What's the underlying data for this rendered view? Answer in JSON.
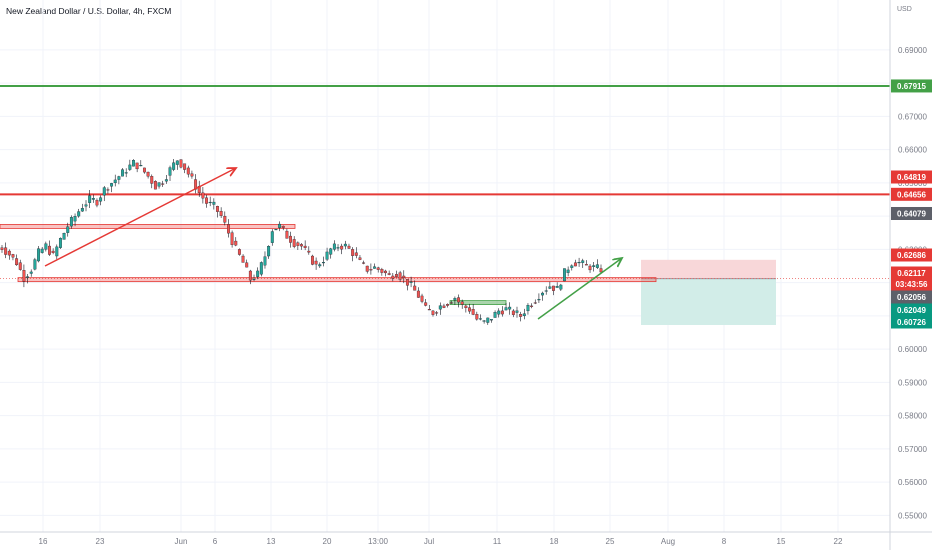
{
  "header": {
    "title": "New Zealand Dollar / U.S. Dollar, 4h, FXCM",
    "currency": "USD"
  },
  "colors": {
    "up": "#26a69a",
    "down": "#ef5350",
    "wick": "#131722",
    "grid": "#f0f3fa",
    "axis_text": "#787b86",
    "green_line": "#43a047",
    "red_line": "#e53935",
    "grey_badge": "#5d6069",
    "teal_badge": "#089981",
    "long_stop_zone": "#f8d7d9",
    "long_target_zone": "#d2ede8"
  },
  "chart_data": {
    "type": "candlestick",
    "symbol": "NZDUSD",
    "timeframe": "4h",
    "broker": "FXCM",
    "y_range": [
      0.545,
      0.705
    ],
    "y_ticks": [
      0.69,
      0.68,
      0.67,
      0.66,
      0.65,
      0.64,
      0.63,
      0.62,
      0.61,
      0.6,
      0.59,
      0.58,
      0.57,
      0.56,
      0.55
    ],
    "y_tick_labels": [
      "0.69000",
      "0.68000",
      "0.67000",
      "0.66000",
      "0.65000",
      "0.64000",
      "0.63000",
      "0.62000",
      "0.61000",
      "0.60000",
      "0.59000",
      "0.58000",
      "0.57000",
      "0.56000",
      "0.55000"
    ],
    "x_tick_labels": [
      "16",
      "23",
      "Jun",
      "6",
      "13",
      "20",
      "13:00",
      "Jul",
      "11",
      "18",
      "25",
      "Aug",
      "8",
      "15",
      "22"
    ],
    "price_path": [
      [
        0.6305,
        0.6285,
        0.626,
        0.6215,
        0.624,
        0.629,
        0.631,
        0.628,
        0.633,
        0.637,
        0.64,
        0.643,
        0.645,
        0.6445,
        0.648,
        0.65,
        0.652,
        0.654,
        0.656,
        0.6545,
        0.652,
        0.649,
        0.6505,
        0.654,
        0.657,
        0.6545,
        0.651,
        0.647,
        0.644,
        0.643,
        0.64,
        0.635,
        0.63,
        0.626,
        0.621,
        0.6225,
        0.628,
        0.636,
        0.637,
        0.634,
        0.632,
        0.631,
        0.628,
        0.625,
        0.627,
        0.63,
        0.631,
        0.631,
        0.629,
        0.626,
        0.624,
        0.6245,
        0.6235,
        0.622,
        0.623,
        0.621,
        0.619,
        0.616,
        0.612,
        0.611,
        0.613,
        0.614,
        0.6155,
        0.613,
        0.612,
        0.609,
        0.608,
        0.6095,
        0.6115,
        0.612,
        0.611,
        0.61,
        0.613,
        0.615,
        0.6175,
        0.619,
        0.618,
        0.623,
        0.626,
        0.626,
        0.625,
        0.6245,
        0.624
      ]
    ],
    "horizontal_levels": [
      {
        "price": 0.67915,
        "label": "0.67915",
        "color": "green"
      },
      {
        "price": 0.64656,
        "label": "0.64656",
        "color": "red"
      }
    ],
    "zones": [
      {
        "from": 0.637,
        "to": 0.6375
      },
      {
        "from": 0.6211,
        "to": 0.6215
      },
      {
        "from": 0.614,
        "to": 0.6146
      }
    ],
    "price_badges": [
      {
        "label": "0.67915",
        "price": 0.67915,
        "color": "green"
      },
      {
        "label": "0.64819",
        "price": 0.64819,
        "color": "red"
      },
      {
        "label": "0.64656",
        "price": 0.64656,
        "color": "red"
      },
      {
        "label": "0.64079",
        "price": 0.64079,
        "color": "grey"
      },
      {
        "label": "0.62686",
        "price": 0.62686,
        "color": "red"
      },
      {
        "label": "0.62117",
        "price": 0.62117,
        "color": "red"
      },
      {
        "label": "03:43:56",
        "price": 0.62,
        "color": "red"
      },
      {
        "label": "0.62056",
        "price": 0.62056,
        "color": "grey"
      },
      {
        "label": "0.62049",
        "price": 0.62049,
        "color": "teal"
      },
      {
        "label": "0.60726",
        "price": 0.60726,
        "color": "teal"
      }
    ],
    "long_position": {
      "entry": 0.62117,
      "stop": 0.62686,
      "target": 0.60726
    }
  }
}
